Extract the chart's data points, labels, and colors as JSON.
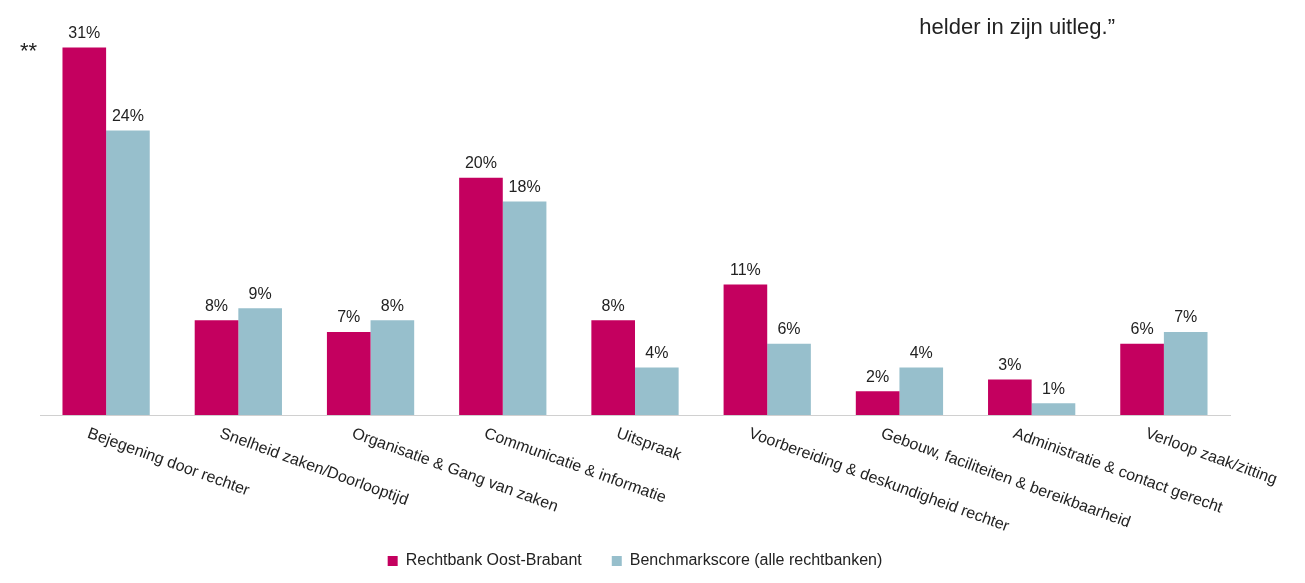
{
  "chart_data": {
    "type": "bar",
    "categories": [
      "Bejegening door rechter",
      "Snelheid zaken/Doorlooptijd",
      "Organisatie & Gang van zaken",
      "Communicatie & informatie",
      "Uitspraak",
      "Voorbereiding & deskundigheid rechter",
      "Gebouw, faciliteiten & bereikbaarheid",
      "Administratie & contact gerecht",
      "Verloop zaak/zitting"
    ],
    "series": [
      {
        "name": "Rechtbank Oost-Brabant",
        "color": "#c4005f",
        "values": [
          31,
          8,
          7,
          20,
          8,
          11,
          2,
          3,
          6
        ],
        "value_labels": [
          "31%",
          "8%",
          "7%",
          "20%",
          "8%",
          "11%",
          "2%",
          "3%",
          "6%"
        ]
      },
      {
        "name": "Benchmarkscore (alle rechtbanken)",
        "color": "#97bfcc",
        "values": [
          24,
          9,
          8,
          18,
          4,
          6,
          4,
          1,
          7
        ],
        "value_labels": [
          "24%",
          "9%",
          "8%",
          "18%",
          "4%",
          "6%",
          "4%",
          "1%",
          "7%"
        ]
      }
    ],
    "tick_labels": false,
    "legend": "bottom",
    "grid": false,
    "annotations": [
      "**",
      "helder in zijn uitleg.”"
    ]
  }
}
